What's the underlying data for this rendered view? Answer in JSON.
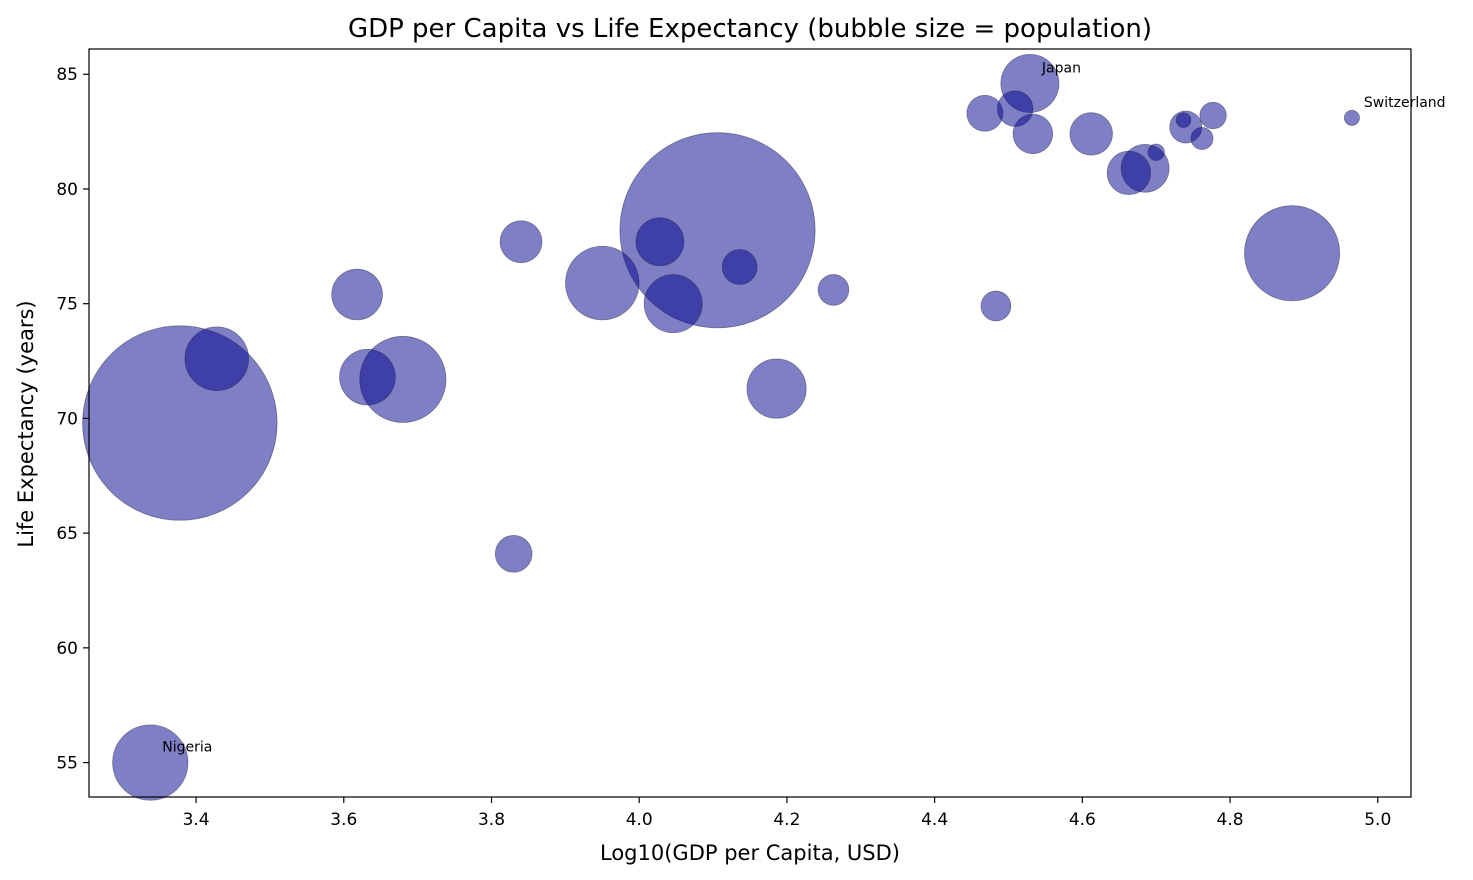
{
  "chart_data": {
    "type": "scatter",
    "title": "GDP per Capita vs Life Expectancy (bubble size = population)",
    "xlabel": "Log10(GDP per Capita, USD)",
    "ylabel": "Life Expectancy (years)",
    "xlim": [
      3.255,
      5.045
    ],
    "ylim": [
      53.5,
      86.1
    ],
    "xticks": [
      3.4,
      3.6,
      3.8,
      4.0,
      4.2,
      4.4,
      4.6,
      4.8,
      5.0
    ],
    "xtick_labels": [
      "3.4",
      "3.6",
      "3.8",
      "4.0",
      "4.2",
      "4.4",
      "4.6",
      "4.8",
      "5.0"
    ],
    "yticks": [
      55,
      60,
      65,
      70,
      75,
      80,
      85
    ],
    "ytick_labels": [
      "55",
      "60",
      "65",
      "70",
      "75",
      "80",
      "85"
    ],
    "grid": false,
    "marker_color": "#00008b",
    "size_unit": "relative population (bubble area)",
    "points": [
      {
        "x": 3.378,
        "y": 69.8,
        "size": 1400
      },
      {
        "x": 4.106,
        "y": 78.2,
        "size": 1410
      },
      {
        "x": 3.338,
        "y": 55.0,
        "size": 210
      },
      {
        "x": 3.428,
        "y": 72.6,
        "size": 150
      },
      {
        "x": 3.618,
        "y": 75.4,
        "size": 95
      },
      {
        "x": 3.632,
        "y": 71.8,
        "size": 115
      },
      {
        "x": 3.68,
        "y": 71.7,
        "size": 275
      },
      {
        "x": 3.83,
        "y": 64.1,
        "size": 50
      },
      {
        "x": 3.84,
        "y": 77.7,
        "size": 65
      },
      {
        "x": 3.95,
        "y": 75.9,
        "size": 200
      },
      {
        "x": 4.028,
        "y": 77.7,
        "size": 85
      },
      {
        "x": 4.046,
        "y": 75.0,
        "size": 125
      },
      {
        "x": 4.136,
        "y": 76.6,
        "size": 45
      },
      {
        "x": 4.186,
        "y": 71.3,
        "size": 130
      },
      {
        "x": 4.263,
        "y": 75.6,
        "size": 35
      },
      {
        "x": 4.468,
        "y": 83.3,
        "size": 48
      },
      {
        "x": 4.483,
        "y": 74.9,
        "size": 33
      },
      {
        "x": 4.509,
        "y": 83.5,
        "size": 47
      },
      {
        "x": 4.529,
        "y": 84.6,
        "size": 125
      },
      {
        "x": 4.533,
        "y": 82.4,
        "size": 58
      },
      {
        "x": 4.612,
        "y": 82.4,
        "size": 67
      },
      {
        "x": 4.663,
        "y": 80.7,
        "size": 70
      },
      {
        "x": 4.685,
        "y": 80.9,
        "size": 85
      },
      {
        "x": 4.7,
        "y": 81.6,
        "size": 10
      },
      {
        "x": 4.737,
        "y": 83.0,
        "size": 8
      },
      {
        "x": 4.74,
        "y": 82.7,
        "size": 38
      },
      {
        "x": 4.762,
        "y": 82.2,
        "size": 18
      },
      {
        "x": 4.777,
        "y": 83.2,
        "size": 26
      },
      {
        "x": 4.884,
        "y": 77.2,
        "size": 335
      },
      {
        "x": 4.965,
        "y": 83.1,
        "size": 8.5
      }
    ],
    "annotations": [
      {
        "text": "Japan",
        "x": 4.529,
        "y": 84.6
      },
      {
        "text": "Switzerland",
        "x": 4.965,
        "y": 83.1
      },
      {
        "text": "Nigeria",
        "x": 3.338,
        "y": 55.0
      }
    ]
  }
}
